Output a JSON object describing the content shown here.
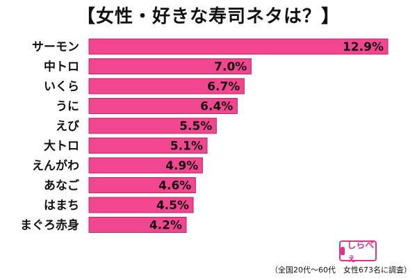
{
  "title": "【女性・好きな寿司ネタは？】",
  "note": "（全国20代〜60代　女性673名に調査）",
  "logo": {
    "text": "しらべぇ",
    "icon": "pot-icon"
  },
  "colors": {
    "bar": "#f2468f",
    "bar_edge": "#c0206a",
    "text": "#111111"
  },
  "chart_data": {
    "type": "bar",
    "orientation": "horizontal",
    "title": "【女性・好きな寿司ネタは？】",
    "xlabel": "",
    "ylabel": "",
    "unit": "%",
    "xlim": [
      0,
      13.2
    ],
    "grid": false,
    "categories": [
      "サーモン",
      "中トロ",
      "いくら",
      "うに",
      "えび",
      "大トロ",
      "えんがわ",
      "あなご",
      "はまち",
      "まぐろ赤身"
    ],
    "values": [
      12.9,
      7.0,
      6.7,
      6.4,
      5.5,
      5.1,
      4.9,
      4.6,
      4.5,
      4.2
    ],
    "value_labels": [
      "12.9%",
      "7.0%",
      "6.7%",
      "6.4%",
      "5.5%",
      "5.1%",
      "4.9%",
      "4.6%",
      "4.5%",
      "4.2%"
    ]
  }
}
